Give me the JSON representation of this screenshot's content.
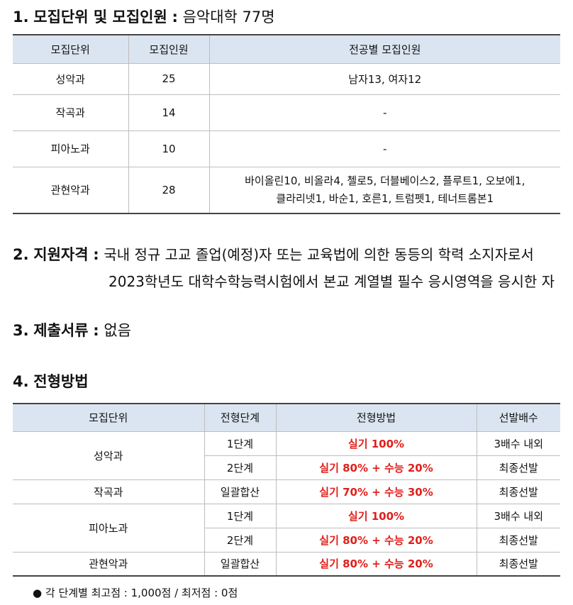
{
  "section1": {
    "number": "1.",
    "title": "모집단위 및 모집인원",
    "colon": ":",
    "value": "음악대학 77명",
    "table": {
      "headers": [
        "모집단위",
        "모집인원",
        "전공별 모집인원"
      ],
      "rows": [
        {
          "unit": "성악과",
          "count": "25",
          "detail": [
            "남자13, 여자12"
          ]
        },
        {
          "unit": "작곡과",
          "count": "14",
          "detail": [
            "-"
          ]
        },
        {
          "unit": "피아노과",
          "count": "10",
          "detail": [
            "-"
          ]
        },
        {
          "unit": "관현악과",
          "count": "28",
          "detail": [
            "바이올린10, 비올라4, 첼로5, 더블베이스2, 플루트1, 오보에1,",
            "클라리넷1, 바순1, 호른1, 트럼펫1, 테너트롬본1"
          ]
        }
      ]
    }
  },
  "section2": {
    "number": "2.",
    "title": "지원자격",
    "colon": ":",
    "line1": "국내 정규 고교 졸업(예정)자 또는 교육법에 의한 동등의 학력 소지자로서",
    "line2": "2023학년도 대학수학능력시험에서 본교 계열별 필수 응시영역을 응시한 자"
  },
  "section3": {
    "number": "3.",
    "title": "제출서류",
    "colon": ":",
    "value": "없음"
  },
  "section4": {
    "number": "4.",
    "title": "전형방법",
    "table": {
      "headers": [
        "모집단위",
        "전형단계",
        "전형방법",
        "선발배수"
      ],
      "rows": [
        {
          "unit": "성악과",
          "stage": "1단계",
          "method": "실기 100%",
          "ratio": "3배수 내외"
        },
        {
          "stage": "2단계",
          "method": "실기 80% + 수능 20%",
          "ratio": "최종선발"
        },
        {
          "unit": "작곡과",
          "stage": "일괄합산",
          "method": "실기 70% + 수능 30%",
          "ratio": "최종선발"
        },
        {
          "unit": "피아노과",
          "stage": "1단계",
          "method": "실기 100%",
          "ratio": "3배수 내외"
        },
        {
          "stage": "2단계",
          "method": "실기 80% + 수능 20%",
          "ratio": "최종선발"
        },
        {
          "unit": "관현악과",
          "stage": "일괄합산",
          "method": "실기 80% + 수능 20%",
          "ratio": "최종선발"
        }
      ]
    },
    "note": "각 단계별 최고점 : 1,000점 / 최저점 : 0점"
  },
  "colors": {
    "header_bg": "#dbe5f1",
    "method_text": "#e0201b"
  }
}
